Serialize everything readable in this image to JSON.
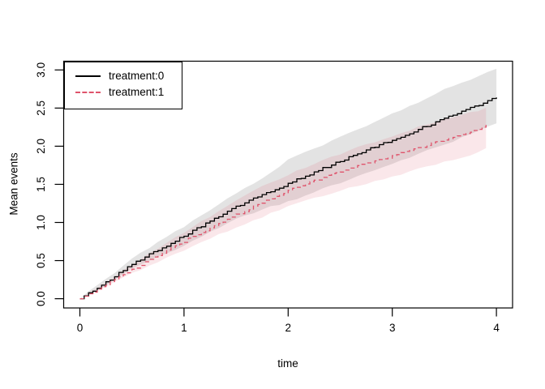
{
  "figure": {
    "xlabel": "time",
    "ylabel": "Mean events",
    "x_ticks": [
      "0",
      "1",
      "2",
      "3",
      "4"
    ],
    "x_tick_values": [
      0,
      1,
      2,
      3,
      4
    ],
    "y_ticks": [
      "0.0",
      "0.5",
      "1.0",
      "1.5",
      "2.0",
      "2.5",
      "3.0"
    ],
    "y_tick_values": [
      0,
      0.5,
      1,
      1.5,
      2,
      2.5,
      3
    ]
  },
  "legend": {
    "items": [
      {
        "label": "treatment:0",
        "color": "#000000",
        "style": "solid"
      },
      {
        "label": "treatment:1",
        "color": "#DF536B",
        "style": "dashed"
      }
    ]
  },
  "colors": {
    "treatment0_line": "#000000",
    "treatment1_line": "#DF536B",
    "treatment0_band": "rgba(0,0,0,0.11)",
    "treatment1_band": "rgba(223,83,107,0.14)",
    "axis": "#000000"
  },
  "chart_data": {
    "type": "line",
    "title": "",
    "xlabel": "time",
    "ylabel": "Mean events",
    "xlim": [
      0,
      4
    ],
    "ylim": [
      0,
      3
    ],
    "grid": false,
    "legend_position": "topleft",
    "series": [
      {
        "name": "treatment:0",
        "color": "#000000",
        "linestyle": "solid",
        "band_color": "rgba(0,0,0,0.11)",
        "t": [
          0,
          0.25,
          0.5,
          0.75,
          1,
          1.25,
          1.5,
          1.75,
          2,
          2.25,
          2.5,
          2.75,
          3,
          3.25,
          3.5,
          3.75,
          4
        ],
        "mean": [
          0,
          0.22,
          0.45,
          0.64,
          0.82,
          1.02,
          1.21,
          1.36,
          1.51,
          1.66,
          1.8,
          1.95,
          2.08,
          2.22,
          2.36,
          2.5,
          2.64
        ],
        "upper": [
          0,
          0.26,
          0.52,
          0.74,
          0.95,
          1.17,
          1.38,
          1.57,
          1.82,
          1.97,
          2.12,
          2.27,
          2.42,
          2.58,
          2.75,
          2.88,
          3.02
        ],
        "lower": [
          0,
          0.18,
          0.39,
          0.55,
          0.7,
          0.87,
          1.05,
          1.17,
          1.27,
          1.4,
          1.52,
          1.65,
          1.77,
          1.9,
          2.02,
          2.15,
          2.31
        ]
      },
      {
        "name": "treatment:1",
        "color": "#DF536B",
        "linestyle": "dashed",
        "band_color": "rgba(223,83,107,0.14)",
        "t": [
          0,
          0.25,
          0.5,
          0.75,
          1,
          1.25,
          1.5,
          1.75,
          2,
          2.25,
          2.5,
          2.75,
          3,
          3.25,
          3.5,
          3.75,
          3.9
        ],
        "mean": [
          0,
          0.18,
          0.38,
          0.57,
          0.75,
          0.93,
          1.1,
          1.26,
          1.42,
          1.55,
          1.67,
          1.77,
          1.87,
          1.98,
          2.08,
          2.18,
          2.28
        ],
        "upper": [
          0,
          0.21,
          0.44,
          0.66,
          0.87,
          1.08,
          1.28,
          1.47,
          1.63,
          1.77,
          1.9,
          2.02,
          2.13,
          2.25,
          2.35,
          2.44,
          2.5
        ],
        "lower": [
          0,
          0.15,
          0.33,
          0.49,
          0.64,
          0.79,
          0.94,
          1.07,
          1.21,
          1.32,
          1.42,
          1.51,
          1.6,
          1.7,
          1.79,
          1.88,
          1.97
        ]
      }
    ]
  }
}
